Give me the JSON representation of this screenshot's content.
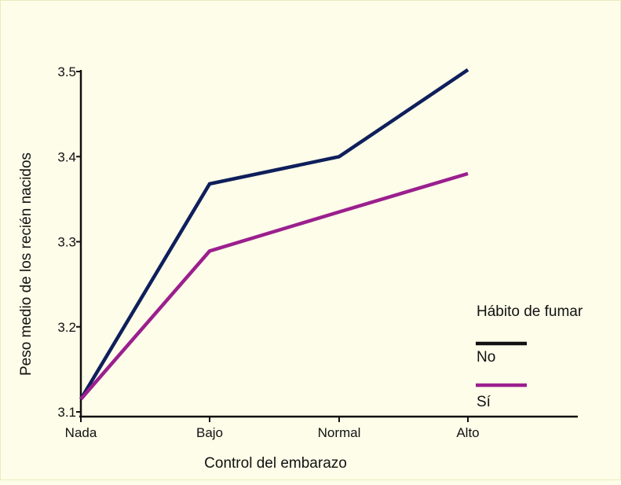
{
  "chart_data": {
    "type": "line",
    "categories": [
      "Nada",
      "Bajo",
      "Normal",
      "Alto"
    ],
    "series": [
      {
        "name": "No",
        "values": [
          3.115,
          3.368,
          3.4,
          3.502
        ],
        "color": "#0f1f5c"
      },
      {
        "name": "Sí",
        "values": [
          3.115,
          3.289,
          3.335,
          3.38
        ],
        "color": "#9b1f8e"
      }
    ],
    "xlabel": "Control del embarazo",
    "ylabel": "Peso medio de los recién nacidos",
    "ylim": [
      3.1,
      3.5
    ],
    "yticks": [
      "3.1",
      "3.2",
      "3.3",
      "3.4",
      "3.5"
    ],
    "legend": {
      "title": "Hábito de fumar",
      "placement": "right",
      "entry_colors": [
        "#111111",
        "#9b1f8e"
      ]
    },
    "grid": false
  }
}
